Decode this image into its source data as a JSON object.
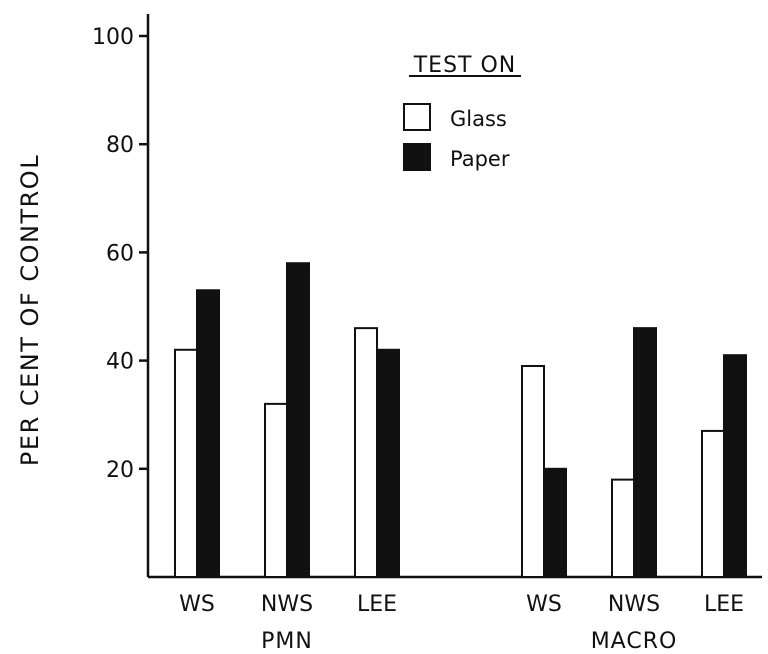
{
  "chart_data": {
    "type": "bar",
    "title": "",
    "ylabel": "PER CENT OF CONTROL",
    "xlabel": "",
    "ylim": [
      0,
      100
    ],
    "yticks": [
      20,
      40,
      60,
      80,
      100
    ],
    "groups": [
      {
        "name": "PMN",
        "categories": [
          "WS",
          "NWS",
          "LEE"
        ]
      },
      {
        "name": "MACRO",
        "categories": [
          "WS",
          "NWS",
          "LEE"
        ]
      }
    ],
    "legend": {
      "title": "TEST ON",
      "position": "top-center"
    },
    "series": [
      {
        "name": "Glass",
        "fill": "#ffffff",
        "values": [
          42,
          32,
          46,
          39,
          18,
          27
        ]
      },
      {
        "name": "Paper",
        "fill": "#111111",
        "values": [
          53,
          58,
          42,
          20,
          46,
          41
        ]
      }
    ]
  }
}
